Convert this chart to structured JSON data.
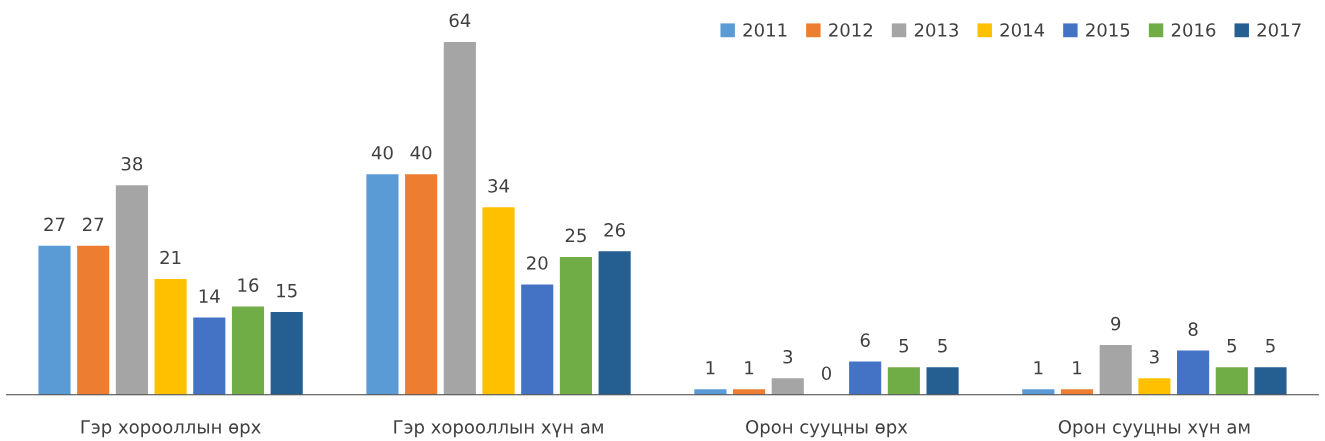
{
  "chart_data": {
    "type": "bar",
    "categories": [
      "Гэр хорооллын өрх",
      "Гэр хорооллын хүн ам",
      "Орон сууцны өрх",
      "Орон сууцны хүн ам"
    ],
    "series": [
      {
        "name": "2011",
        "color": "#5b9bd5",
        "values": [
          27,
          40,
          1,
          1
        ]
      },
      {
        "name": "2012",
        "color": "#ed7d31",
        "values": [
          27,
          40,
          1,
          1
        ]
      },
      {
        "name": "2013",
        "color": "#a5a5a5",
        "values": [
          38,
          64,
          3,
          9
        ]
      },
      {
        "name": "2014",
        "color": "#ffc000",
        "values": [
          21,
          34,
          0,
          3
        ]
      },
      {
        "name": "2015",
        "color": "#4472c4",
        "values": [
          14,
          20,
          6,
          8
        ]
      },
      {
        "name": "2016",
        "color": "#70ad47",
        "values": [
          16,
          25,
          5,
          5
        ]
      },
      {
        "name": "2017",
        "color": "#255e91",
        "values": [
          15,
          26,
          5,
          5
        ]
      }
    ],
    "data_labels": true,
    "legend": "top right",
    "grid": false
  }
}
